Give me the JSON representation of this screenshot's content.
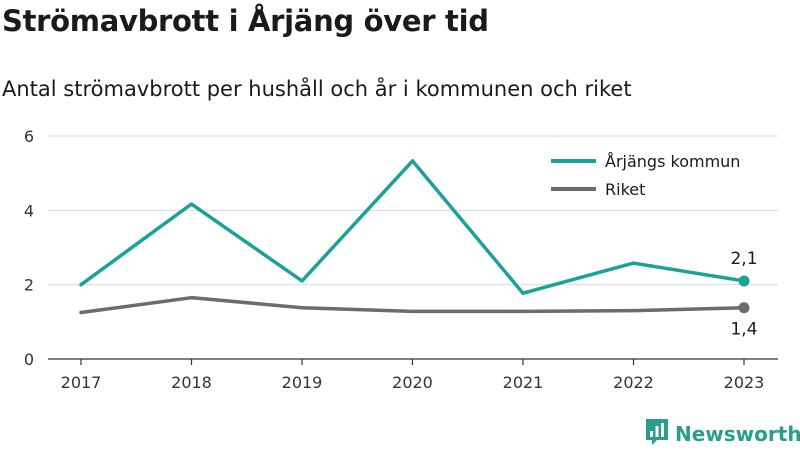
{
  "title": "Strömavbrott i Årjäng över tid",
  "subtitle": "Antal strömavbrott per hushåll och år i kommunen och riket",
  "brand": "Newsworthy",
  "colors": {
    "kommun": "#1aa198",
    "riket": "#6b6b70"
  },
  "chart_data": {
    "type": "line",
    "categories": [
      "2017",
      "2018",
      "2019",
      "2020",
      "2021",
      "2022",
      "2023"
    ],
    "series": [
      {
        "name": "Årjängs kommun",
        "values": [
          2.0,
          4.17,
          2.1,
          5.33,
          1.77,
          2.58,
          2.1
        ],
        "color": "#1aa198",
        "end_label": "2,1"
      },
      {
        "name": "Riket",
        "values": [
          1.25,
          1.65,
          1.38,
          1.28,
          1.28,
          1.3,
          1.38
        ],
        "color": "#6b6b70",
        "end_label": "1,4"
      }
    ],
    "y_ticks": [
      "0",
      "2",
      "4",
      "6"
    ],
    "ylim": [
      0,
      6
    ],
    "grid": true,
    "legend": "top-right"
  }
}
